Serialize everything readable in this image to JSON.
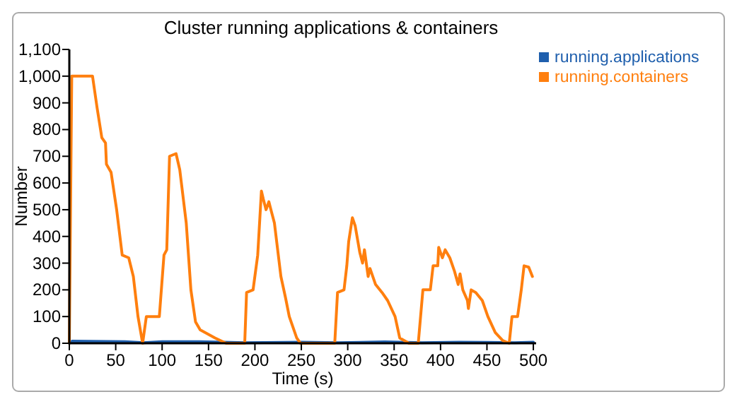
{
  "chart_data": {
    "type": "line",
    "title": "Cluster running applications & containers",
    "xlabel": "Time (s)",
    "ylabel": "Number",
    "xlim": [
      0,
      503
    ],
    "ylim": [
      0,
      1100
    ],
    "xticks": [
      0,
      50,
      100,
      150,
      200,
      250,
      300,
      350,
      400,
      450,
      500
    ],
    "yticks": [
      {
        "value": 0,
        "label": "0"
      },
      {
        "value": 100,
        "label": "100"
      },
      {
        "value": 200,
        "label": "200"
      },
      {
        "value": 300,
        "label": "300"
      },
      {
        "value": 400,
        "label": "400"
      },
      {
        "value": 500,
        "label": "500"
      },
      {
        "value": 600,
        "label": "600"
      },
      {
        "value": 700,
        "label": "700"
      },
      {
        "value": 800,
        "label": "800"
      },
      {
        "value": 900,
        "label": "900"
      },
      {
        "value": 1000,
        "label": "1,000"
      },
      {
        "value": 1100,
        "label": "1,100"
      }
    ],
    "grid": false,
    "legend": "top right",
    "series": [
      {
        "name": "running.applications",
        "color": "#1f5fad",
        "x": [
          0,
          3,
          60,
          80,
          100,
          140,
          190,
          250,
          290,
          340,
          380,
          420,
          450,
          480,
          500
        ],
        "values": [
          0,
          8,
          6,
          2,
          6,
          6,
          2,
          4,
          2,
          5,
          2,
          4,
          3,
          2,
          4
        ]
      },
      {
        "name": "running.containers",
        "color": "#ff7f0e",
        "x": [
          0,
          2.6,
          25,
          30,
          35,
          39,
          40,
          45,
          51,
          57,
          64,
          69,
          74,
          79,
          83,
          97,
          102,
          105,
          108,
          115,
          119,
          126,
          131,
          136,
          141,
          157,
          169,
          189,
          191,
          198,
          203,
          207,
          209,
          212,
          215,
          218,
          221,
          228,
          233,
          237,
          245,
          249,
          286,
          289,
          296,
          299,
          301,
          305,
          308,
          313,
          316,
          318,
          322,
          324,
          330,
          337,
          343,
          351,
          356,
          366,
          376,
          381,
          389,
          392,
          397,
          398,
          402,
          405,
          410,
          415,
          419,
          421,
          424,
          429,
          430,
          433,
          438,
          445,
          451,
          459,
          467,
          474,
          477,
          483,
          487,
          490,
          495,
          499
        ],
        "values": [
          0,
          1000,
          1000,
          880,
          770,
          750,
          670,
          640,
          500,
          330,
          320,
          250,
          100,
          0,
          100,
          100,
          330,
          350,
          700,
          710,
          650,
          450,
          200,
          80,
          50,
          20,
          0,
          0,
          190,
          200,
          330,
          570,
          540,
          500,
          530,
          490,
          450,
          250,
          170,
          100,
          20,
          0,
          0,
          190,
          200,
          290,
          380,
          470,
          440,
          340,
          300,
          350,
          250,
          280,
          220,
          190,
          160,
          100,
          20,
          0,
          0,
          200,
          200,
          290,
          290,
          359,
          320,
          350,
          320,
          270,
          220,
          260,
          200,
          160,
          130,
          200,
          190,
          160,
          100,
          40,
          10,
          0,
          100,
          100,
          200,
          290,
          285,
          250
        ]
      }
    ]
  }
}
